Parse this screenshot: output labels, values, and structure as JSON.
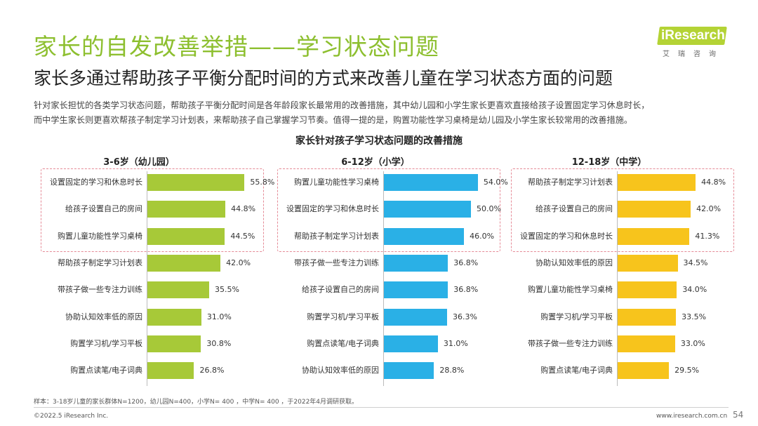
{
  "header": {
    "title": "家长的自发改善举措——学习状态问题",
    "subtitle": "家长多通过帮助孩子平衡分配时间的方式来改善儿童在学习状态方面的问题",
    "desc_line1": "针对家长担忧的各类学习状态问题，帮助孩子平衡分配时间是各年龄段家长最常用的改善措施，其中幼儿园和小学生家长更喜欢直接给孩子设置固定学习休息时长，",
    "desc_line2": "而中学生家长则更喜欢帮孩子制定学习计划表，来帮助孩子自己掌握学习节奏。值得一提的是，购置功能性学习桌椅是幼儿园及小学生家长较常用的改善措施。"
  },
  "logo": {
    "text": "iResearch",
    "sub": "艾瑞咨询"
  },
  "chart_data": {
    "type": "bar",
    "title": "家长针对孩子学习状态问题的改善措施",
    "groups": [
      {
        "name": "3-6岁（幼儿园）",
        "color": "#a7c938",
        "highlight_top": 3,
        "items": [
          {
            "label": "设置固定的学习和休息时长",
            "value": 55.8,
            "display": "55.8%"
          },
          {
            "label": "给孩子设置自己的房间",
            "value": 44.8,
            "display": "44.8%"
          },
          {
            "label": "购置儿童功能性学习桌椅",
            "value": 44.5,
            "display": "44.5%"
          },
          {
            "label": "帮助孩子制定学习计划表",
            "value": 42.0,
            "display": "42.0%"
          },
          {
            "label": "带孩子做一些专注力训练",
            "value": 35.5,
            "display": "35.5%"
          },
          {
            "label": "协助认知效率低的原因",
            "value": 31.0,
            "display": "31.0%"
          },
          {
            "label": "购置学习机/学习平板",
            "value": 30.8,
            "display": "30.8%"
          },
          {
            "label": "购置点读笔/电子词典",
            "value": 26.8,
            "display": "26.8%"
          }
        ]
      },
      {
        "name": "6-12岁（小学）",
        "color": "#2ab0e6",
        "highlight_top": 3,
        "items": [
          {
            "label": "购置儿童功能性学习桌椅",
            "value": 54.0,
            "display": "54.0%"
          },
          {
            "label": "设置固定的学习和休息时长",
            "value": 50.0,
            "display": "50.0%"
          },
          {
            "label": "帮助孩子制定学习计划表",
            "value": 46.0,
            "display": "46.0%"
          },
          {
            "label": "带孩子做一些专注力训练",
            "value": 36.8,
            "display": "36.8%"
          },
          {
            "label": "给孩子设置自己的房间",
            "value": 36.8,
            "display": "36.8%"
          },
          {
            "label": "购置学习机/学习平板",
            "value": 36.3,
            "display": "36.3%"
          },
          {
            "label": "购置点读笔/电子词典",
            "value": 31.0,
            "display": "31.0%"
          },
          {
            "label": "协助认知效率低的原因",
            "value": 28.8,
            "display": "28.8%"
          }
        ]
      },
      {
        "name": "12-18岁（中学）",
        "color": "#f7c41c",
        "highlight_top": 3,
        "items": [
          {
            "label": "帮助孩子制定学习计划表",
            "value": 44.8,
            "display": "44.8%"
          },
          {
            "label": "给孩子设置自己的房间",
            "value": 42.0,
            "display": "42.0%"
          },
          {
            "label": "设置固定的学习和休息时长",
            "value": 41.3,
            "display": "41.3%"
          },
          {
            "label": "协助认知效率低的原因",
            "value": 34.5,
            "display": "34.5%"
          },
          {
            "label": "购置儿童功能性学习桌椅",
            "value": 34.0,
            "display": "34.0%"
          },
          {
            "label": "购置学习机/学习平板",
            "value": 33.5,
            "display": "33.5%"
          },
          {
            "label": "带孩子做一些专注力训练",
            "value": 33.0,
            "display": "33.0%"
          },
          {
            "label": "购置点读笔/电子词典",
            "value": 29.5,
            "display": "29.5%"
          }
        ]
      }
    ],
    "highlight_color": "#e58a96"
  },
  "footer": {
    "note": "样本：3-18岁儿童的家长群体N=1200，幼儿园N=400，小学N= 400 ，中学N= 400 ，于2022年4月调研获取。",
    "copyright": "©2022.5 iResearch Inc.",
    "website": "www.iresearch.com.cn",
    "page_number": "54"
  }
}
